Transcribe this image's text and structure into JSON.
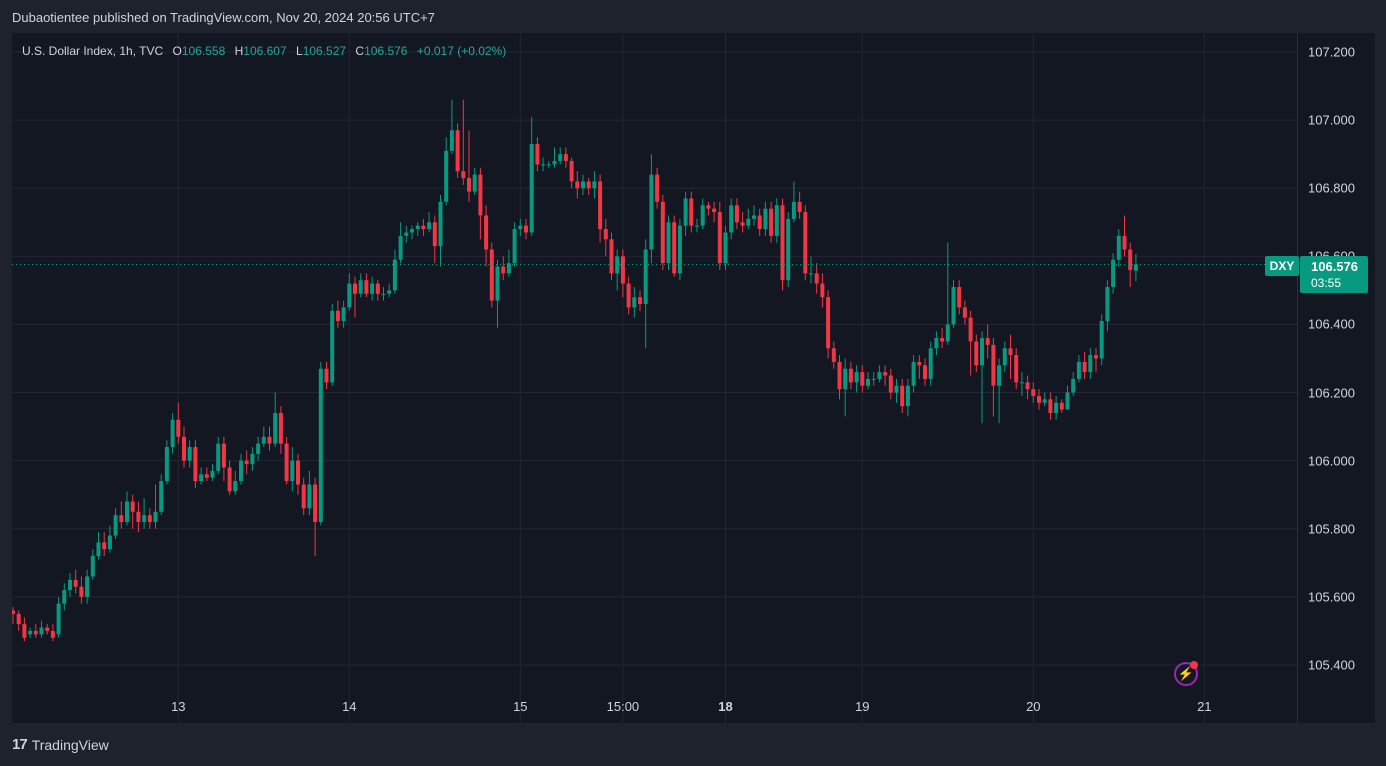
{
  "header": {
    "publish_text": "Dubaotientee published on TradingView.com, Nov 20, 2024 20:56 UTC+7"
  },
  "legend": {
    "symbol_desc": "U.S. Dollar Index, 1h, TVC",
    "o_label": "O",
    "o_value": "106.558",
    "h_label": "H",
    "h_value": "106.607",
    "l_label": "L",
    "l_value": "106.527",
    "c_label": "C",
    "c_value": "106.576",
    "change": "+0.017 (+0.02%)"
  },
  "price_label": {
    "symbol": "DXY",
    "price": "106.576",
    "countdown": "03:55"
  },
  "footer": {
    "brand": "TradingView"
  },
  "colors": {
    "up": "#089981",
    "down": "#f23645",
    "bg": "#131722",
    "grid": "#232632"
  },
  "chart_data": {
    "type": "candlestick",
    "y_ticks": [
      "107.200",
      "107.000",
      "106.800",
      "106.600",
      "106.400",
      "106.200",
      "106.000",
      "105.800",
      "105.600",
      "105.400"
    ],
    "y_tick_values": [
      107.2,
      107.0,
      106.8,
      106.6,
      106.4,
      106.2,
      106.0,
      105.8,
      105.6,
      105.4
    ],
    "ylim": [
      105.25,
      107.35
    ],
    "x_ticks": [
      {
        "label": "13",
        "bold": false,
        "bar": 29
      },
      {
        "label": "14",
        "bold": false,
        "bar": 59
      },
      {
        "label": "15",
        "bold": false,
        "bar": 89
      },
      {
        "label": "15:00",
        "bold": false,
        "bar": 107
      },
      {
        "label": "18",
        "bold": true,
        "bar": 125
      },
      {
        "label": "19",
        "bold": false,
        "bar": 149
      },
      {
        "label": "20",
        "bold": false,
        "bar": 179
      },
      {
        "label": "21",
        "bold": false,
        "bar": 209
      }
    ],
    "last_price": 106.576,
    "candles": [
      [
        105.56,
        105.55,
        105.57,
        105.52
      ],
      [
        105.55,
        105.52,
        105.56,
        105.5
      ],
      [
        105.52,
        105.48,
        105.54,
        105.47
      ],
      [
        105.49,
        105.5,
        105.51,
        105.48
      ],
      [
        105.5,
        105.49,
        105.52,
        105.48
      ],
      [
        105.49,
        105.51,
        105.53,
        105.48
      ],
      [
        105.51,
        105.5,
        105.52,
        105.49
      ],
      [
        105.5,
        105.48,
        105.52,
        105.47
      ],
      [
        105.49,
        105.58,
        105.6,
        105.48
      ],
      [
        105.58,
        105.62,
        105.64,
        105.56
      ],
      [
        105.62,
        105.65,
        105.67,
        105.6
      ],
      [
        105.65,
        105.63,
        105.68,
        105.61
      ],
      [
        105.63,
        105.6,
        105.66,
        105.58
      ],
      [
        105.6,
        105.66,
        105.68,
        105.58
      ],
      [
        105.66,
        105.72,
        105.74,
        105.65
      ],
      [
        105.72,
        105.76,
        105.79,
        105.71
      ],
      [
        105.76,
        105.74,
        105.79,
        105.72
      ],
      [
        105.74,
        105.78,
        105.81,
        105.73
      ],
      [
        105.78,
        105.84,
        105.86,
        105.77
      ],
      [
        105.84,
        105.82,
        105.88,
        105.8
      ],
      [
        105.82,
        105.88,
        105.91,
        105.81
      ],
      [
        105.88,
        105.85,
        105.9,
        105.8
      ],
      [
        105.85,
        105.82,
        105.88,
        105.79
      ],
      [
        105.82,
        105.84,
        105.89,
        105.8
      ],
      [
        105.84,
        105.82,
        105.86,
        105.8
      ],
      [
        105.82,
        105.85,
        105.93,
        105.8
      ],
      [
        105.85,
        105.94,
        105.96,
        105.84
      ],
      [
        105.94,
        106.04,
        106.06,
        105.93
      ],
      [
        106.04,
        106.12,
        106.14,
        106.02
      ],
      [
        106.12,
        106.07,
        106.17,
        106.05
      ],
      [
        106.07,
        106.0,
        106.1,
        105.98
      ],
      [
        106.0,
        106.04,
        106.06,
        105.98
      ],
      [
        106.04,
        105.94,
        106.06,
        105.92
      ],
      [
        105.94,
        105.96,
        105.98,
        105.93
      ],
      [
        105.96,
        105.95,
        105.98,
        105.94
      ],
      [
        105.95,
        105.97,
        105.99,
        105.94
      ],
      [
        105.97,
        106.05,
        106.07,
        105.96
      ],
      [
        106.05,
        105.98,
        106.07,
        105.94
      ],
      [
        105.98,
        105.91,
        106.0,
        105.9
      ],
      [
        105.91,
        105.94,
        105.97,
        105.9
      ],
      [
        105.94,
        106.0,
        106.02,
        105.93
      ],
      [
        106.0,
        105.99,
        106.03,
        105.96
      ],
      [
        105.99,
        106.02,
        106.04,
        105.97
      ],
      [
        106.02,
        106.05,
        106.07,
        106.0
      ],
      [
        106.05,
        106.07,
        106.1,
        106.04
      ],
      [
        106.07,
        106.05,
        106.1,
        106.03
      ],
      [
        106.05,
        106.14,
        106.2,
        106.04
      ],
      [
        106.14,
        106.05,
        106.16,
        106.02
      ],
      [
        106.05,
        105.94,
        106.07,
        105.93
      ],
      [
        105.94,
        106.0,
        106.04,
        105.91
      ],
      [
        106.0,
        105.93,
        106.02,
        105.9
      ],
      [
        105.93,
        105.86,
        105.95,
        105.84
      ],
      [
        105.86,
        105.93,
        105.97,
        105.84
      ],
      [
        105.93,
        105.82,
        105.95,
        105.72
      ],
      [
        105.82,
        106.27,
        106.29,
        105.81
      ],
      [
        106.27,
        106.23,
        106.29,
        106.21
      ],
      [
        106.23,
        106.44,
        106.46,
        106.22
      ],
      [
        106.44,
        106.41,
        106.47,
        106.39
      ],
      [
        106.41,
        106.45,
        106.47,
        106.39
      ],
      [
        106.45,
        106.52,
        106.55,
        106.44
      ],
      [
        106.52,
        106.49,
        106.54,
        106.42
      ],
      [
        106.49,
        106.53,
        106.55,
        106.48
      ],
      [
        106.53,
        106.49,
        106.55,
        106.48
      ],
      [
        106.49,
        106.52,
        106.54,
        106.47
      ],
      [
        106.52,
        106.49,
        106.53,
        106.47
      ],
      [
        106.49,
        106.49,
        106.51,
        106.47
      ],
      [
        106.49,
        106.5,
        106.52,
        106.48
      ],
      [
        106.5,
        106.59,
        106.62,
        106.49
      ],
      [
        106.59,
        106.66,
        106.7,
        106.58
      ],
      [
        106.66,
        106.67,
        106.69,
        106.64
      ],
      [
        106.67,
        106.68,
        106.69,
        106.65
      ],
      [
        106.68,
        106.69,
        106.7,
        106.66
      ],
      [
        106.69,
        106.68,
        106.71,
        106.66
      ],
      [
        106.68,
        106.7,
        106.73,
        106.67
      ],
      [
        106.7,
        106.63,
        106.72,
        106.58
      ],
      [
        106.63,
        106.76,
        106.78,
        106.57
      ],
      [
        106.76,
        106.91,
        106.95,
        106.75
      ],
      [
        106.91,
        106.97,
        107.06,
        106.9
      ],
      [
        106.97,
        106.85,
        106.99,
        106.83
      ],
      [
        106.85,
        106.83,
        107.06,
        106.81
      ],
      [
        106.83,
        106.79,
        106.97,
        106.76
      ],
      [
        106.79,
        106.84,
        106.86,
        106.78
      ],
      [
        106.84,
        106.72,
        106.86,
        106.65
      ],
      [
        106.72,
        106.62,
        106.75,
        106.57
      ],
      [
        106.62,
        106.47,
        106.64,
        106.45
      ],
      [
        106.47,
        106.57,
        106.59,
        106.39
      ],
      [
        106.57,
        106.55,
        106.6,
        106.53
      ],
      [
        106.55,
        106.58,
        106.62,
        106.54
      ],
      [
        106.58,
        106.68,
        106.7,
        106.57
      ],
      [
        106.68,
        106.69,
        106.71,
        106.66
      ],
      [
        106.69,
        106.67,
        106.71,
        106.65
      ],
      [
        106.67,
        106.93,
        107.01,
        106.66
      ],
      [
        106.93,
        106.87,
        106.95,
        106.85
      ],
      [
        106.87,
        106.87,
        106.89,
        106.85
      ],
      [
        106.87,
        106.87,
        106.88,
        106.86
      ],
      [
        106.87,
        106.88,
        106.92,
        106.86
      ],
      [
        106.88,
        106.9,
        106.92,
        106.87
      ],
      [
        106.9,
        106.88,
        106.92,
        106.86
      ],
      [
        106.88,
        106.82,
        106.89,
        106.8
      ],
      [
        106.82,
        106.8,
        106.85,
        106.77
      ],
      [
        106.8,
        106.82,
        106.84,
        106.78
      ],
      [
        106.82,
        106.8,
        106.83,
        106.78
      ],
      [
        106.8,
        106.82,
        106.85,
        106.77
      ],
      [
        106.82,
        106.68,
        106.84,
        106.64
      ],
      [
        106.68,
        106.65,
        106.71,
        106.6
      ],
      [
        106.65,
        106.55,
        106.67,
        106.53
      ],
      [
        106.55,
        106.6,
        106.62,
        106.5
      ],
      [
        106.6,
        106.52,
        106.62,
        106.48
      ],
      [
        106.52,
        106.45,
        106.54,
        106.43
      ],
      [
        106.45,
        106.48,
        106.51,
        106.42
      ],
      [
        106.48,
        106.46,
        106.5,
        106.44
      ],
      [
        106.46,
        106.62,
        106.65,
        106.33
      ],
      [
        106.62,
        106.84,
        106.9,
        106.58
      ],
      [
        106.84,
        106.76,
        106.86,
        106.74
      ],
      [
        106.76,
        106.58,
        106.78,
        106.56
      ],
      [
        106.58,
        106.7,
        106.72,
        106.56
      ],
      [
        106.7,
        106.55,
        106.72,
        106.54
      ],
      [
        106.55,
        106.69,
        106.71,
        106.53
      ],
      [
        106.69,
        106.77,
        106.79,
        106.66
      ],
      [
        106.77,
        106.69,
        106.79,
        106.67
      ],
      [
        106.69,
        106.69,
        106.71,
        106.67
      ],
      [
        106.69,
        106.75,
        106.77,
        106.68
      ],
      [
        106.75,
        106.74,
        106.76,
        106.72
      ],
      [
        106.74,
        106.73,
        106.76,
        106.7
      ],
      [
        106.73,
        106.58,
        106.76,
        106.56
      ],
      [
        106.58,
        106.67,
        106.69,
        106.56
      ],
      [
        106.67,
        106.75,
        106.77,
        106.65
      ],
      [
        106.75,
        106.7,
        106.77,
        106.68
      ],
      [
        106.7,
        106.69,
        106.73,
        106.67
      ],
      [
        106.69,
        106.71,
        106.74,
        106.68
      ],
      [
        106.71,
        106.72,
        106.75,
        106.69
      ],
      [
        106.72,
        106.68,
        106.74,
        106.66
      ],
      [
        106.68,
        106.74,
        106.76,
        106.66
      ],
      [
        106.74,
        106.66,
        106.76,
        106.64
      ],
      [
        106.66,
        106.75,
        106.77,
        106.64
      ],
      [
        106.75,
        106.53,
        106.77,
        106.5
      ],
      [
        106.53,
        106.71,
        106.73,
        106.51
      ],
      [
        106.71,
        106.76,
        106.82,
        106.7
      ],
      [
        106.76,
        106.73,
        106.79,
        106.71
      ],
      [
        106.73,
        106.55,
        106.75,
        106.53
      ],
      [
        106.55,
        106.55,
        106.6,
        106.52
      ],
      [
        106.55,
        106.52,
        106.58,
        106.49
      ],
      [
        106.52,
        106.48,
        106.55,
        106.45
      ],
      [
        106.48,
        106.33,
        106.5,
        106.3
      ],
      [
        106.33,
        106.29,
        106.35,
        106.27
      ],
      [
        106.29,
        106.21,
        106.31,
        106.18
      ],
      [
        106.21,
        106.27,
        106.3,
        106.13
      ],
      [
        106.27,
        106.23,
        106.29,
        106.21
      ],
      [
        106.23,
        106.26,
        106.28,
        106.2
      ],
      [
        106.26,
        106.22,
        106.28,
        106.2
      ],
      [
        106.22,
        106.24,
        106.26,
        106.21
      ],
      [
        106.24,
        106.24,
        106.26,
        106.22
      ],
      [
        106.24,
        106.26,
        106.28,
        106.23
      ],
      [
        106.26,
        106.25,
        106.28,
        106.22
      ],
      [
        106.25,
        106.2,
        106.27,
        106.18
      ],
      [
        106.2,
        106.22,
        106.24,
        106.17
      ],
      [
        106.22,
        106.16,
        106.24,
        106.14
      ],
      [
        106.16,
        106.22,
        106.24,
        106.13
      ],
      [
        106.22,
        106.29,
        106.31,
        106.2
      ],
      [
        106.29,
        106.28,
        106.31,
        106.24
      ],
      [
        106.28,
        106.24,
        106.3,
        106.22
      ],
      [
        106.24,
        106.33,
        106.35,
        106.22
      ],
      [
        106.33,
        106.36,
        106.38,
        106.31
      ],
      [
        106.36,
        106.35,
        106.39,
        106.33
      ],
      [
        106.35,
        106.4,
        106.64,
        106.34
      ],
      [
        106.4,
        106.51,
        106.53,
        106.39
      ],
      [
        106.51,
        106.45,
        106.53,
        106.43
      ],
      [
        106.45,
        106.42,
        106.47,
        106.4
      ],
      [
        106.42,
        106.35,
        106.44,
        106.25
      ],
      [
        106.35,
        106.28,
        106.37,
        106.26
      ],
      [
        106.28,
        106.36,
        106.38,
        106.11
      ],
      [
        106.36,
        106.34,
        106.4,
        106.3
      ],
      [
        106.34,
        106.22,
        106.36,
        106.13
      ],
      [
        106.22,
        106.28,
        106.3,
        106.11
      ],
      [
        106.28,
        106.33,
        106.35,
        106.26
      ],
      [
        106.33,
        106.31,
        106.37,
        106.24
      ],
      [
        106.31,
        106.23,
        106.33,
        106.21
      ],
      [
        106.23,
        106.23,
        106.26,
        106.19
      ],
      [
        106.23,
        106.21,
        106.25,
        106.18
      ],
      [
        106.21,
        106.19,
        106.23,
        106.17
      ],
      [
        106.19,
        106.17,
        106.21,
        106.15
      ],
      [
        106.17,
        106.18,
        106.2,
        106.16
      ],
      [
        106.18,
        106.14,
        106.2,
        106.12
      ],
      [
        106.14,
        106.17,
        106.19,
        106.12
      ],
      [
        106.17,
        106.15,
        106.18,
        106.14
      ],
      [
        106.15,
        106.2,
        106.22,
        106.15
      ],
      [
        106.2,
        106.24,
        106.26,
        106.19
      ],
      [
        106.24,
        106.29,
        106.31,
        106.23
      ],
      [
        106.29,
        106.26,
        106.32,
        106.24
      ],
      [
        106.26,
        106.31,
        106.33,
        106.24
      ],
      [
        106.31,
        106.3,
        106.33,
        106.26
      ],
      [
        106.3,
        106.41,
        106.43,
        106.28
      ],
      [
        106.41,
        106.51,
        106.53,
        106.38
      ],
      [
        106.51,
        106.59,
        106.61,
        106.49
      ],
      [
        106.59,
        106.66,
        106.68,
        106.57
      ],
      [
        106.66,
        106.62,
        106.72,
        106.6
      ],
      [
        106.62,
        106.56,
        106.64,
        106.51
      ],
      [
        106.558,
        106.576,
        106.607,
        106.527
      ]
    ]
  }
}
